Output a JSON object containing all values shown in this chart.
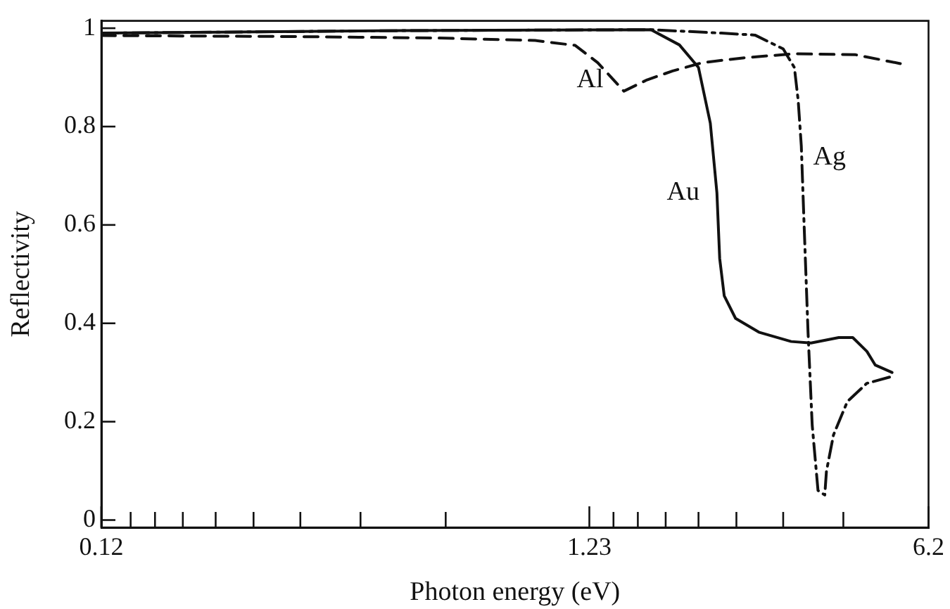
{
  "chart_data": {
    "type": "line",
    "xlabel": "Photon energy (eV)",
    "ylabel": "Reflectivity",
    "log": "x",
    "grid": false,
    "legend": false,
    "marker": "none",
    "xlim": [
      0.12,
      6.2
    ],
    "ylim": [
      -0.015,
      1.015
    ],
    "xticks": [
      0.12,
      {
        "value": 0.138,
        "label": null
      },
      {
        "value": 0.155,
        "label": null
      },
      {
        "value": 0.177,
        "label": null
      },
      {
        "value": 0.207,
        "label": null
      },
      {
        "value": 0.248,
        "label": null
      },
      {
        "value": 0.31,
        "label": null
      },
      {
        "value": 0.413,
        "label": null
      },
      {
        "value": 0.62,
        "label": null
      },
      1.23,
      {
        "value": 1.38,
        "label": null
      },
      {
        "value": 1.55,
        "label": null
      },
      {
        "value": 1.77,
        "label": null
      },
      {
        "value": 2.07,
        "label": null
      },
      {
        "value": 2.48,
        "label": null
      },
      {
        "value": 3.1,
        "label": null
      },
      {
        "value": 4.13,
        "label": null
      },
      6.2
    ],
    "yticks": [
      0,
      0.2,
      0.4,
      0.6,
      0.8,
      1
    ],
    "series": [
      {
        "name": "Al",
        "color": "#111111",
        "line_style": "dashed",
        "x": [
          0.12,
          0.3,
          0.6,
          0.95,
          1.15,
          1.28,
          1.45,
          1.62,
          1.83,
          2.11,
          2.58,
          3.27,
          4.38,
          5.42
        ],
        "values": [
          0.985,
          0.983,
          0.98,
          0.975,
          0.965,
          0.93,
          0.872,
          0.895,
          0.913,
          0.93,
          0.94,
          0.948,
          0.946,
          0.928
        ]
      },
      {
        "name": "Au",
        "color": "#111111",
        "line_style": "solid",
        "x": [
          0.12,
          0.5,
          1.65,
          1.89,
          2.07,
          2.19,
          2.26,
          2.29,
          2.34,
          2.47,
          2.76,
          3.22,
          3.54,
          4.04,
          4.32,
          4.62,
          4.81,
          5.21
        ],
        "values": [
          0.99,
          0.995,
          0.997,
          0.966,
          0.92,
          0.807,
          0.665,
          0.532,
          0.456,
          0.41,
          0.382,
          0.363,
          0.36,
          0.371,
          0.371,
          0.343,
          0.315,
          0.3
        ]
      },
      {
        "name": "Ag",
        "color": "#111111",
        "line_style": "dashdot",
        "x": [
          0.12,
          0.5,
          1.65,
          2.31,
          2.71,
          3.1,
          3.27,
          3.33,
          3.38,
          3.42,
          3.49,
          3.56,
          3.66,
          3.78,
          3.81,
          3.94,
          4.21,
          4.62,
          5.21
        ],
        "values": [
          0.99,
          0.995,
          0.997,
          0.99,
          0.986,
          0.958,
          0.92,
          0.853,
          0.76,
          0.618,
          0.382,
          0.193,
          0.06,
          0.051,
          0.099,
          0.173,
          0.241,
          0.278,
          0.292
        ]
      }
    ]
  }
}
